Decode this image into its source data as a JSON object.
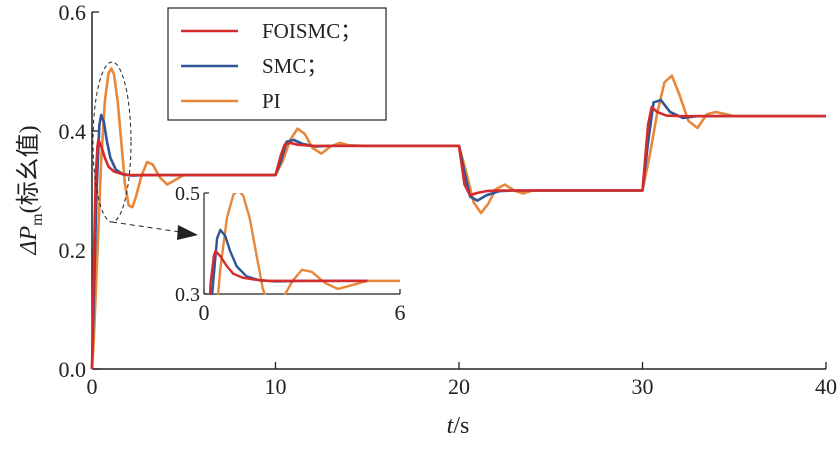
{
  "chart_data": {
    "type": "line",
    "xlabel": {
      "italic": "t",
      "rest": "/s"
    },
    "ylabel": {
      "main": "ΔP",
      "sub": "m",
      "rest": "(标幺值)"
    },
    "xlim": [
      0,
      40
    ],
    "ylim": [
      0,
      0.6
    ],
    "xticks": [
      "0",
      "10",
      "20",
      "30",
      "40"
    ],
    "yticks": [
      "0.0",
      "0.2",
      "0.4",
      "0.6"
    ],
    "grid": false,
    "legend_position": "top-center",
    "series": [
      {
        "name": "FOISMC；",
        "color": "#d62b2b",
        "x": [
          0,
          0.1,
          0.2,
          0.3,
          0.35,
          0.5,
          0.7,
          0.9,
          1.2,
          1.6,
          2.0,
          3.0,
          5.0,
          8.0,
          9.8,
          10.0,
          10.3,
          10.5,
          10.8,
          11.2,
          12,
          15,
          19.8,
          20.0,
          20.3,
          20.6,
          21.0,
          21.5,
          22,
          25,
          29.8,
          30.0,
          30.3,
          30.5,
          30.8,
          31.3,
          32,
          35,
          40
        ],
        "y": [
          0.0,
          0.18,
          0.32,
          0.375,
          0.385,
          0.375,
          0.355,
          0.34,
          0.332,
          0.328,
          0.326,
          0.326,
          0.326,
          0.326,
          0.326,
          0.326,
          0.36,
          0.377,
          0.38,
          0.377,
          0.375,
          0.375,
          0.375,
          0.375,
          0.31,
          0.292,
          0.296,
          0.299,
          0.3,
          0.3,
          0.3,
          0.3,
          0.41,
          0.44,
          0.432,
          0.426,
          0.425,
          0.425,
          0.425
        ]
      },
      {
        "name": "SMC；",
        "color": "#2f5597",
        "x": [
          0,
          0.1,
          0.25,
          0.4,
          0.5,
          0.65,
          0.8,
          1.0,
          1.3,
          1.7,
          2.2,
          3.0,
          5.0,
          9.8,
          10.0,
          10.3,
          10.6,
          11.0,
          11.5,
          12.2,
          13,
          15,
          19.8,
          20.0,
          20.3,
          20.6,
          21.0,
          21.5,
          22.2,
          23,
          25,
          29.8,
          30.0,
          30.3,
          30.6,
          31.0,
          31.5,
          32.2,
          33,
          35,
          40
        ],
        "y": [
          0.0,
          0.12,
          0.3,
          0.41,
          0.427,
          0.415,
          0.385,
          0.355,
          0.335,
          0.327,
          0.325,
          0.326,
          0.326,
          0.326,
          0.326,
          0.35,
          0.382,
          0.385,
          0.378,
          0.374,
          0.375,
          0.375,
          0.375,
          0.375,
          0.33,
          0.29,
          0.283,
          0.292,
          0.299,
          0.3,
          0.3,
          0.3,
          0.3,
          0.38,
          0.448,
          0.452,
          0.432,
          0.422,
          0.425,
          0.425,
          0.425
        ]
      },
      {
        "name": "PI",
        "color": "#e8873a",
        "x": [
          0,
          0.1,
          0.3,
          0.5,
          0.7,
          0.9,
          1.05,
          1.2,
          1.4,
          1.6,
          1.8,
          2.0,
          2.2,
          2.4,
          2.7,
          3.0,
          3.3,
          3.7,
          4.1,
          4.5,
          5.0,
          6.0,
          9.8,
          10.0,
          10.4,
          10.8,
          11.2,
          11.6,
          12.0,
          12.5,
          13.0,
          13.5,
          14.0,
          15.0,
          19.8,
          20.0,
          20.4,
          20.8,
          21.2,
          21.6,
          22.0,
          22.5,
          23.0,
          23.5,
          24.0,
          25.0,
          29.8,
          30.0,
          30.4,
          30.8,
          31.2,
          31.6,
          32.0,
          32.5,
          33.0,
          33.5,
          34.0,
          35.0,
          40
        ],
        "y": [
          0.0,
          0.05,
          0.2,
          0.35,
          0.45,
          0.497,
          0.505,
          0.495,
          0.45,
          0.38,
          0.31,
          0.275,
          0.272,
          0.29,
          0.325,
          0.348,
          0.344,
          0.322,
          0.31,
          0.317,
          0.326,
          0.326,
          0.326,
          0.326,
          0.35,
          0.385,
          0.404,
          0.395,
          0.372,
          0.362,
          0.374,
          0.38,
          0.376,
          0.375,
          0.375,
          0.375,
          0.33,
          0.28,
          0.262,
          0.278,
          0.302,
          0.31,
          0.3,
          0.295,
          0.3,
          0.3,
          0.3,
          0.3,
          0.36,
          0.43,
          0.482,
          0.493,
          0.462,
          0.417,
          0.405,
          0.428,
          0.432,
          0.425,
          0.425
        ]
      }
    ],
    "inset": {
      "xlim": [
        0,
        6
      ],
      "ylim": [
        0.3,
        0.5
      ],
      "xticks": [
        "0",
        "6"
      ],
      "yticks": [
        "0.3",
        "0.5"
      ]
    }
  }
}
